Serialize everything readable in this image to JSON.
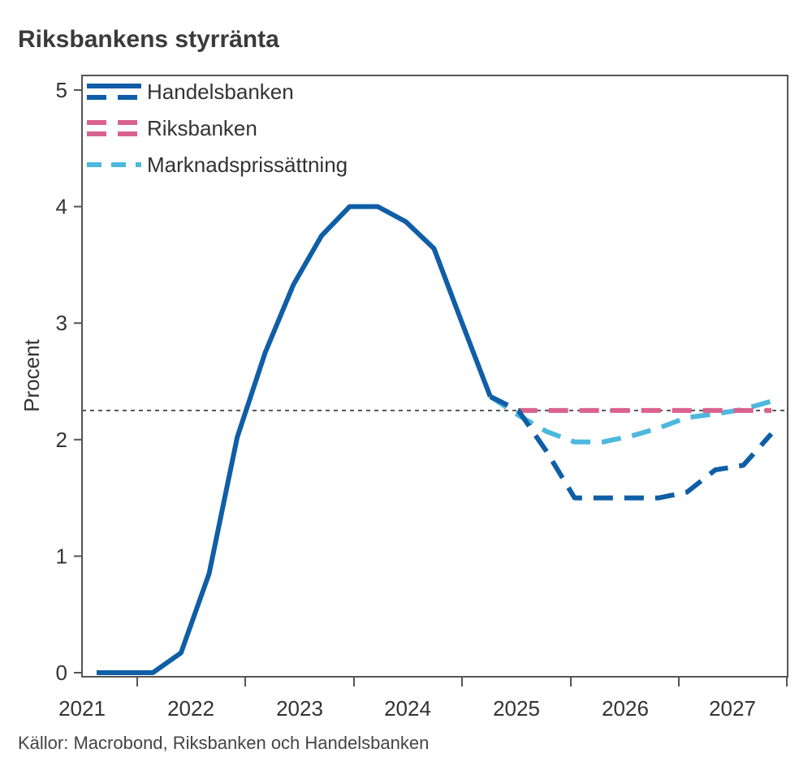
{
  "title": "Riksbankens styrränta",
  "source": "Källor: Macrobond, Riksbanken och Handelsbanken",
  "chart_data": {
    "type": "line",
    "ylabel": "Procent",
    "xlabel": "",
    "ylim": [
      0,
      5.1
    ],
    "yticks": [
      0,
      1,
      2,
      3,
      4,
      5
    ],
    "xlim": [
      2021.0,
      2027.75
    ],
    "xticks": [
      2021,
      2022,
      2023,
      2024,
      2025,
      2026,
      2027
    ],
    "xtick_labels": [
      "2021",
      "2022",
      "2023",
      "2024",
      "2025",
      "2026",
      "2027"
    ],
    "grid": false,
    "legend_position": "top-left",
    "reference_line": {
      "value": 2.25,
      "style": "dotted",
      "color": "#555555"
    },
    "series": [
      {
        "name": "Handelsbanken",
        "color": "#0f5ea6",
        "style": "solid",
        "points": [
          [
            2021.375,
            0
          ],
          [
            2021.625,
            0
          ],
          [
            2021.875,
            0
          ],
          [
            2022.125,
            0.17
          ],
          [
            2022.375,
            0.85
          ],
          [
            2022.625,
            2.02
          ],
          [
            2022.875,
            2.75
          ],
          [
            2023.125,
            3.33
          ],
          [
            2023.375,
            3.75
          ],
          [
            2023.625,
            4.0
          ],
          [
            2023.875,
            4.0
          ],
          [
            2024.125,
            3.87
          ],
          [
            2024.375,
            3.64
          ],
          [
            2024.625,
            3.0
          ],
          [
            2024.875,
            2.37
          ]
        ]
      },
      {
        "name": "Handelsbanken prognos",
        "legend": false,
        "color": "#0f5ea6",
        "style": "dashed",
        "points": [
          [
            2024.875,
            2.37
          ],
          [
            2025.125,
            2.25
          ],
          [
            2025.375,
            1.9
          ],
          [
            2025.625,
            1.5
          ],
          [
            2025.875,
            1.5
          ],
          [
            2026.125,
            1.5
          ],
          [
            2026.375,
            1.5
          ],
          [
            2026.625,
            1.55
          ],
          [
            2026.875,
            1.74
          ],
          [
            2027.125,
            1.78
          ],
          [
            2027.375,
            2.05
          ]
        ]
      },
      {
        "name": "Riksbanken",
        "color": "#d9628e",
        "style": "dashed",
        "points": [
          [
            2024.875,
            2.37
          ],
          [
            2025.125,
            2.25
          ],
          [
            2025.375,
            2.25
          ],
          [
            2025.625,
            2.25
          ],
          [
            2025.875,
            2.25
          ],
          [
            2026.125,
            2.25
          ],
          [
            2026.375,
            2.25
          ],
          [
            2026.625,
            2.25
          ],
          [
            2026.875,
            2.25
          ],
          [
            2027.125,
            2.25
          ],
          [
            2027.375,
            2.25
          ]
        ]
      },
      {
        "name": "Marknadsprissättning",
        "color": "#4db8dd",
        "style": "dashed",
        "points": [
          [
            2024.875,
            2.37
          ],
          [
            2025.125,
            2.21
          ],
          [
            2025.375,
            2.07
          ],
          [
            2025.625,
            1.98
          ],
          [
            2025.875,
            1.98
          ],
          [
            2026.125,
            2.03
          ],
          [
            2026.375,
            2.1
          ],
          [
            2026.625,
            2.19
          ],
          [
            2026.875,
            2.22
          ],
          [
            2027.125,
            2.26
          ],
          [
            2027.375,
            2.33
          ]
        ]
      }
    ]
  }
}
